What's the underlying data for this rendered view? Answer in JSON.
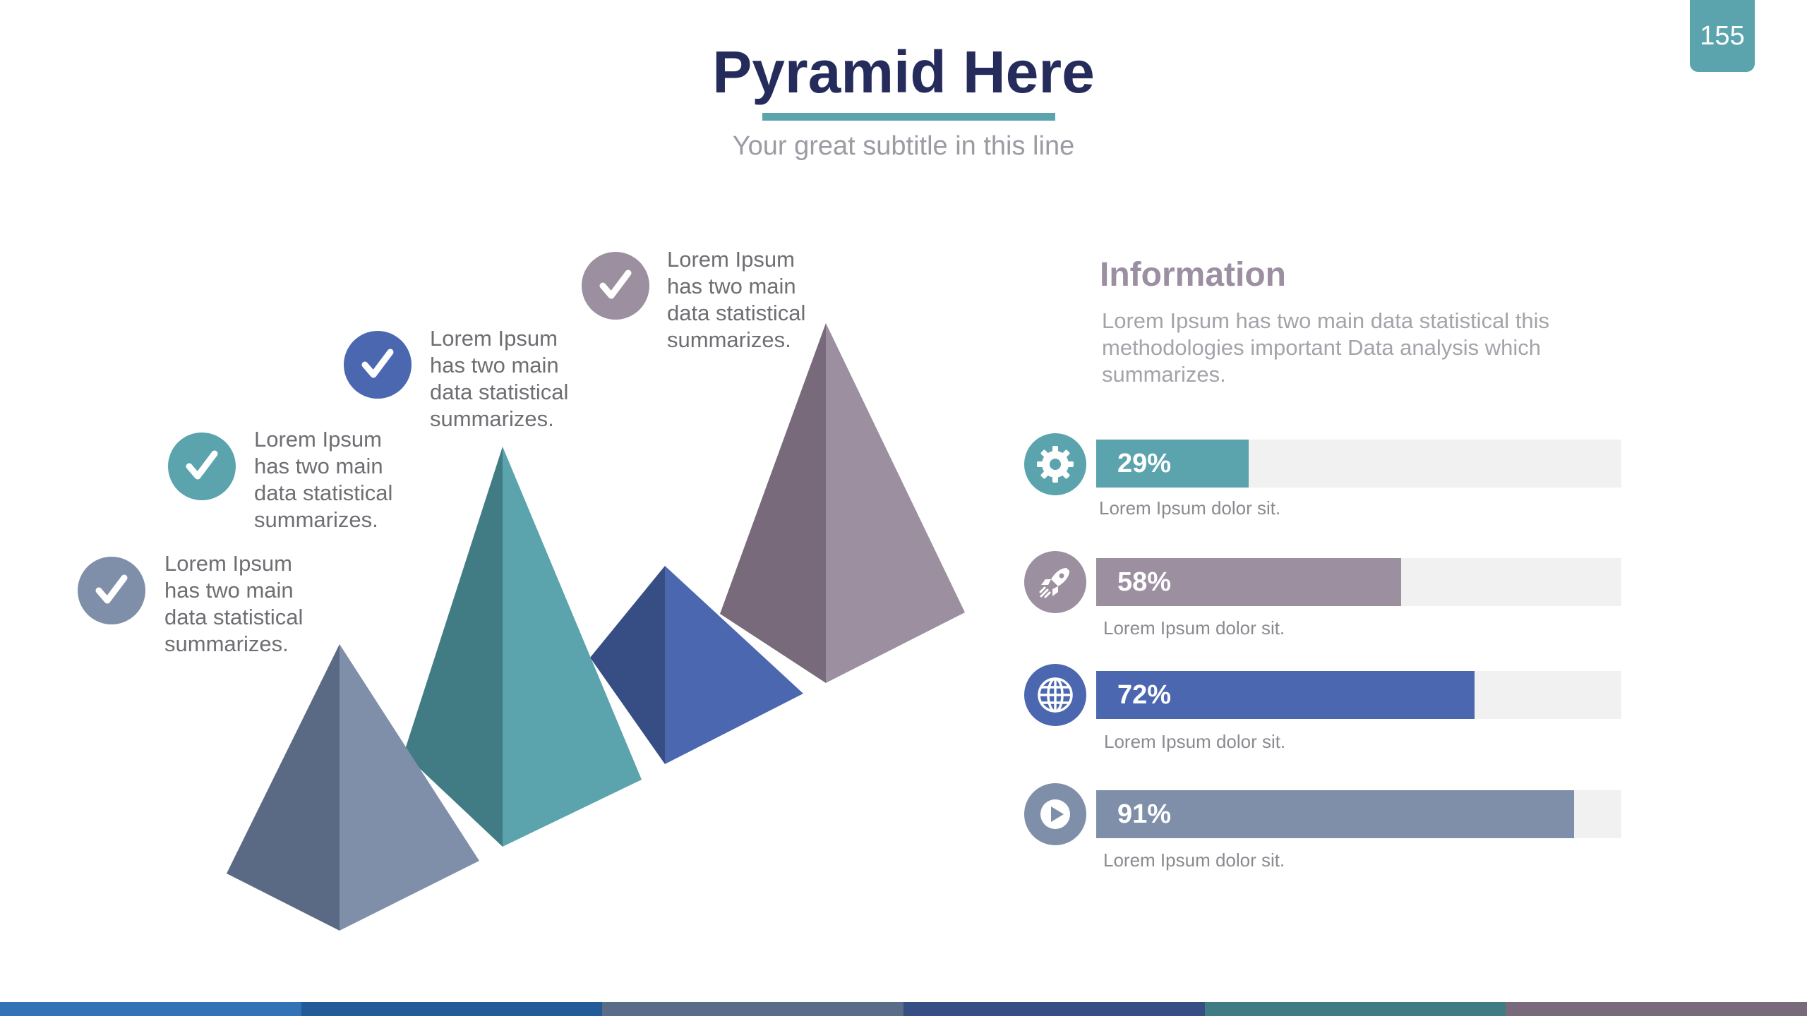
{
  "page_number": "155",
  "title": "Pyramid Here",
  "subtitle": "Your great subtitle in this line",
  "colors": {
    "teal": "#5ba3ad",
    "teal_dark": "#417c84",
    "mauve": "#9c8f9f",
    "mauve_dark": "#786a7b",
    "blue": "#4a67b0",
    "blue_dark": "#364e84",
    "slate": "#7f8fa9",
    "slate_dark": "#5b6a84",
    "navy_title": "#252c5c"
  },
  "notes": [
    {
      "text_lines": [
        "Lorem Ipsum",
        "has two main",
        "data statistical",
        "summarizes."
      ],
      "icon": "check-icon"
    },
    {
      "text_lines": [
        "Lorem Ipsum",
        "has two main",
        "data statistical",
        "summarizes."
      ],
      "icon": "check-icon"
    },
    {
      "text_lines": [
        "Lorem Ipsum",
        "has two main",
        "data statistical",
        "summarizes."
      ],
      "icon": "check-icon"
    },
    {
      "text_lines": [
        "Lorem Ipsum",
        "has two main",
        "data statistical",
        "summarizes."
      ],
      "icon": "check-icon"
    }
  ],
  "info": {
    "heading": "Information",
    "text_lines": [
      "Lorem Ipsum has two main data statistical this",
      "methodologies important Data analysis which",
      "summarizes."
    ]
  },
  "bars": [
    {
      "icon": "gear-icon",
      "value": 29,
      "label": "29%",
      "caption": "Lorem Ipsum dolor sit."
    },
    {
      "icon": "rocket-icon",
      "value": 58,
      "label": "58%",
      "caption": "Lorem Ipsum dolor sit."
    },
    {
      "icon": "globe-icon",
      "value": 72,
      "label": "72%",
      "caption": "Lorem Ipsum dolor sit."
    },
    {
      "icon": "play-icon",
      "value": 91,
      "label": "91%",
      "caption": "Lorem Ipsum dolor sit."
    }
  ],
  "footer_colors": [
    "#3272b6",
    "#225b97",
    "#5a6c88",
    "#364e84",
    "#417c84",
    "#786a7b"
  ]
}
